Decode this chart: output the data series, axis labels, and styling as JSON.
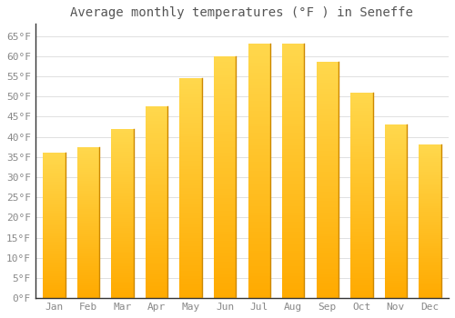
{
  "title": "Average monthly temperatures (°F ) in Seneffe",
  "months": [
    "Jan",
    "Feb",
    "Mar",
    "Apr",
    "May",
    "Jun",
    "Jul",
    "Aug",
    "Sep",
    "Oct",
    "Nov",
    "Dec"
  ],
  "values": [
    36,
    37.5,
    42,
    47.5,
    54.5,
    60,
    63,
    63,
    58.5,
    51,
    43,
    38
  ],
  "bar_color_bottom": "#FFAA00",
  "bar_color_top": "#FFD84D",
  "bar_edge_color": "#CC8800",
  "ylim": [
    0,
    68
  ],
  "yticks": [
    0,
    5,
    10,
    15,
    20,
    25,
    30,
    35,
    40,
    45,
    50,
    55,
    60,
    65
  ],
  "ytick_labels": [
    "0°F",
    "5°F",
    "10°F",
    "15°F",
    "20°F",
    "25°F",
    "30°F",
    "35°F",
    "40°F",
    "45°F",
    "50°F",
    "55°F",
    "60°F",
    "65°F"
  ],
  "grid_color": "#e0e0e0",
  "bg_color": "#ffffff",
  "title_fontsize": 10,
  "tick_fontsize": 8,
  "bar_width": 0.65,
  "n_grad": 80
}
